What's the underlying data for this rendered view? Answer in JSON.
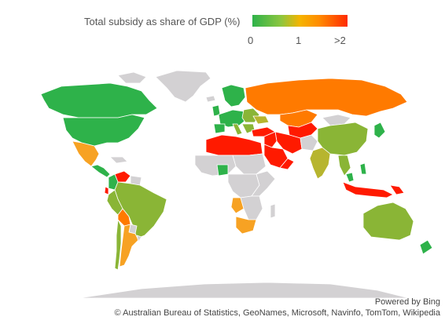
{
  "legend": {
    "title": "Total subsidy as share of GDP (%)",
    "tick_low": "0",
    "tick_mid": "1",
    "tick_high": ">2",
    "gradient": [
      "#2eb24a",
      "#8cc63f",
      "#f5b400",
      "#ff8c00",
      "#ff2a00"
    ]
  },
  "colors": {
    "no_data": "#d3d1d3",
    "green": "#2eb24a",
    "yellow_green": "#8ab536",
    "olive": "#b7b52f",
    "orange": "#ff7a00",
    "light_orange": "#f7a223",
    "red": "#ff1a00"
  },
  "attribution": {
    "powered_by": "Powered by Bing",
    "copyright": "© Australian Bureau of Statistics, GeoNames, Microsoft, Navinfo, TomTom, Wikipedia"
  }
}
